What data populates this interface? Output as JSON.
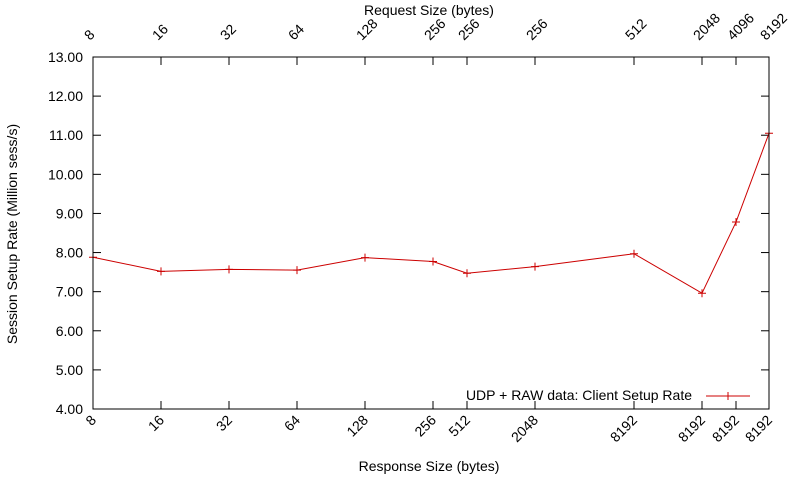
{
  "chart_data": {
    "type": "line",
    "title": "",
    "x2label": "Request Size (bytes)",
    "xlabel": "Response Size (bytes)",
    "ylabel": "Session Setup Rate (Million sess/s)",
    "ylim": [
      4.0,
      13.0
    ],
    "yticks": [
      "4.00",
      "5.00",
      "6.00",
      "7.00",
      "8.00",
      "9.00",
      "10.00",
      "11.00",
      "12.00",
      "13.00"
    ],
    "grid": false,
    "legend_position": "bottom-right",
    "points": [
      {
        "request": "8",
        "response": "8",
        "y": 7.88
      },
      {
        "request": "16",
        "response": "16",
        "y": 7.52
      },
      {
        "request": "32",
        "response": "32",
        "y": 7.57
      },
      {
        "request": "64",
        "response": "64",
        "y": 7.55
      },
      {
        "request": "128",
        "response": "128",
        "y": 7.87
      },
      {
        "request": "256",
        "response": "256",
        "y": 7.77
      },
      {
        "request": "256",
        "response": "512",
        "y": 7.47
      },
      {
        "request": "256",
        "response": "2048",
        "y": 7.64
      },
      {
        "request": "512",
        "response": "8192",
        "y": 7.97
      },
      {
        "request": "2048",
        "response": "8192",
        "y": 6.96
      },
      {
        "request": "4096",
        "response": "8192",
        "y": 8.78
      },
      {
        "request": "8192",
        "response": "8192",
        "y": 11.05
      }
    ],
    "series": [
      {
        "name": "UDP + RAW data: Client Setup Rate",
        "color": "#cc0000",
        "marker": "plus"
      }
    ]
  }
}
